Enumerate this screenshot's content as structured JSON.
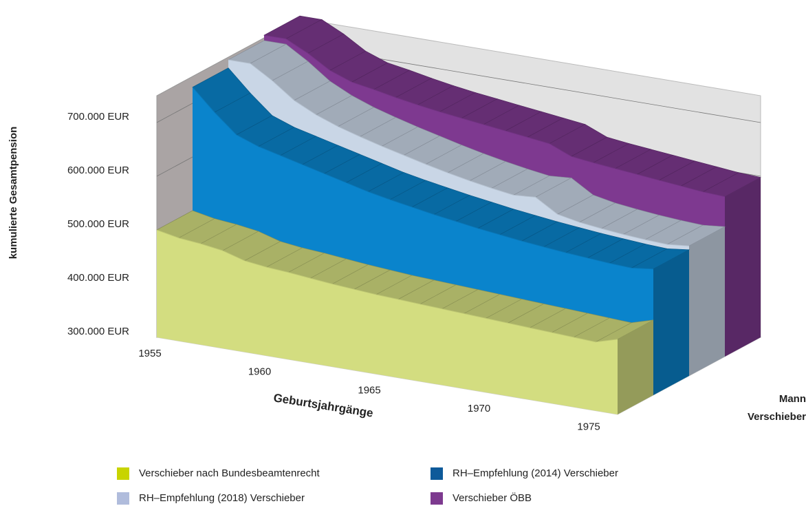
{
  "chart_data": {
    "type": "area3d",
    "y_label": "kumulierte Gesamtpension",
    "x_label": "Geburtsjahrgänge",
    "depth_labels": [
      "Mann",
      "Verschieber"
    ],
    "x": [
      1955,
      1956,
      1957,
      1958,
      1959,
      1960,
      1961,
      1962,
      1963,
      1964,
      1965,
      1966,
      1967,
      1968,
      1969,
      1970,
      1971,
      1972,
      1973,
      1974,
      1975,
      1976
    ],
    "xlim": [
      1955,
      1976
    ],
    "xticks": [
      1955,
      1960,
      1965,
      1970,
      1975
    ],
    "ylim": [
      300000,
      750000
    ],
    "yticks": [
      {
        "value": 300000,
        "label": "300.000 EUR"
      },
      {
        "value": 400000,
        "label": "400.000 EUR"
      },
      {
        "value": 500000,
        "label": "500.000 EUR"
      },
      {
        "value": 600000,
        "label": "600.000 EUR"
      },
      {
        "value": 700000,
        "label": "700.000 EUR"
      }
    ],
    "grid": true,
    "series": [
      {
        "name": "Verschieber nach Bundesbeamtenrecht",
        "color": "#c8d400",
        "face": "#d3dd80",
        "values": [
          500000,
          492000,
          488000,
          482000,
          470000,
          465000,
          462000,
          458000,
          454000,
          451000,
          448000,
          446000,
          444000,
          442000,
          440000,
          438000,
          436000,
          434000,
          432000,
          430000,
          428000,
          440000
        ]
      },
      {
        "name": "RH–Empfehlung (2014) Verschieber",
        "color": "#0e5a9a",
        "face": "#0a84cc",
        "values": [
          730000,
          690000,
          655000,
          640000,
          630000,
          620000,
          610000,
          600000,
          590000,
          582000,
          575000,
          568000,
          562000,
          556000,
          551000,
          546000,
          542000,
          538000,
          535000,
          532000,
          530000,
          535000
        ]
      },
      {
        "name": "RH–Empfehlung (2018) Verschieber",
        "color": "#b0bcdc",
        "face": "#c9d6e6",
        "values": [
          745000,
          745000,
          720000,
          690000,
          670000,
          655000,
          643000,
          632000,
          622000,
          612000,
          603000,
          595000,
          588000,
          582000,
          585000,
          560000,
          552000,
          547000,
          543000,
          540000,
          538000,
          542000
        ]
      },
      {
        "name": "Verschieber ÖBB",
        "color": "#7d3a8f",
        "face": "#7e3990",
        "values": [
          755000,
          755000,
          735000,
          710000,
          695000,
          688000,
          680000,
          673000,
          667000,
          662000,
          657000,
          652000,
          647000,
          642000,
          625000,
          620000,
          616000,
          612000,
          608000,
          604000,
          600000,
          598000
        ]
      }
    ]
  }
}
